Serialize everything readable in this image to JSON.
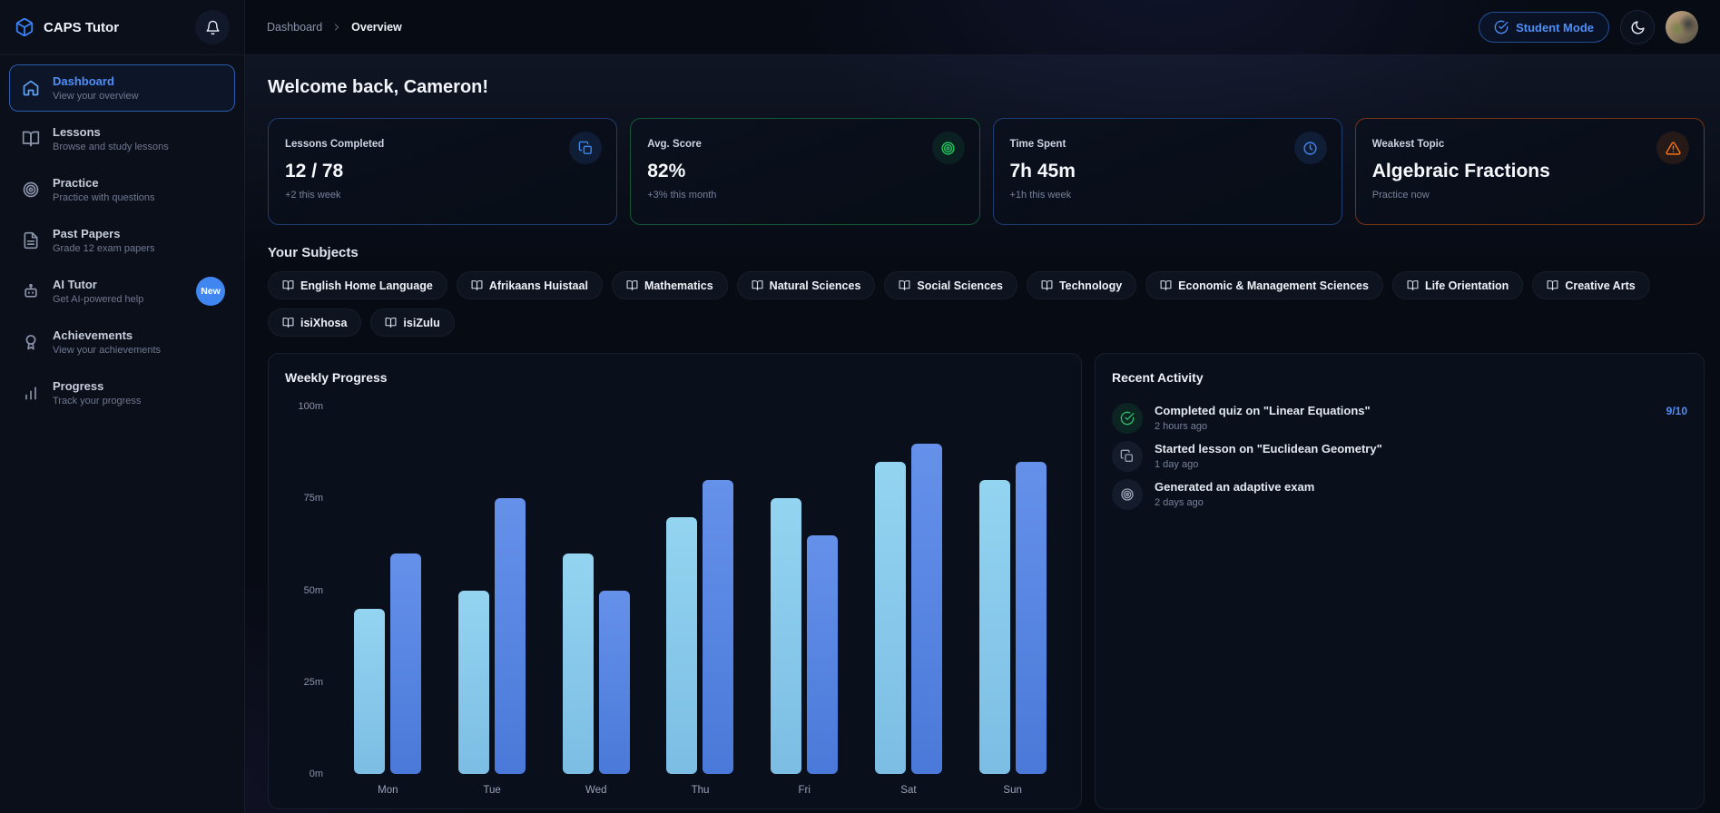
{
  "app": {
    "name": "CAPS Tutor"
  },
  "sidebar": {
    "items": [
      {
        "label": "Dashboard",
        "sub": "View your overview"
      },
      {
        "label": "Lessons",
        "sub": "Browse and study lessons"
      },
      {
        "label": "Practice",
        "sub": "Practice with questions"
      },
      {
        "label": "Past Papers",
        "sub": "Grade 12 exam papers"
      },
      {
        "label": "AI Tutor",
        "sub": "Get AI-powered help",
        "badge": "New"
      },
      {
        "label": "Achievements",
        "sub": "View your achievements"
      },
      {
        "label": "Progress",
        "sub": "Track your progress"
      }
    ]
  },
  "header": {
    "breadcrumb": {
      "parent": "Dashboard",
      "current": "Overview"
    },
    "student_mode_label": "Student Mode"
  },
  "main": {
    "welcome": "Welcome back, Cameron!",
    "subjects_title": "Your Subjects"
  },
  "stats": {
    "cards": [
      {
        "label": "Lessons Completed",
        "value": "12 / 78",
        "sub": "+2 this week",
        "icon": "copy-icon",
        "accent": "#3b82f6"
      },
      {
        "label": "Avg. Score",
        "value": "82%",
        "sub": "+3% this month",
        "icon": "target-icon",
        "accent": "#22c55e"
      },
      {
        "label": "Time Spent",
        "value": "7h 45m",
        "sub": "+1h this week",
        "icon": "clock-icon",
        "accent": "#3b82f6"
      },
      {
        "label": "Weakest Topic",
        "value": "Algebraic Fractions",
        "sub": "Practice now",
        "icon": "alert-triangle-icon",
        "accent": "#f97316"
      }
    ]
  },
  "subjects": {
    "items": [
      "English Home Language",
      "Afrikaans Huistaal",
      "Mathematics",
      "Natural Sciences",
      "Social Sciences",
      "Technology",
      "Economic & Management Sciences",
      "Life Orientation",
      "Creative Arts",
      "isiXhosa",
      "isiZulu"
    ]
  },
  "chart_data": {
    "type": "bar",
    "title": "Weekly Progress",
    "categories": [
      "Mon",
      "Tue",
      "Wed",
      "Thu",
      "Fri",
      "Sat",
      "Sun"
    ],
    "series": [
      {
        "name": "series-light-blue",
        "color": "#8ccbec",
        "values": [
          45,
          50,
          60,
          70,
          75,
          85,
          80
        ]
      },
      {
        "name": "series-blue",
        "color": "#5585e2",
        "values": [
          60,
          75,
          50,
          80,
          65,
          90,
          85
        ]
      }
    ],
    "unit": "minutes",
    "ylabel": "",
    "xlabel": "",
    "ylim": [
      0,
      100
    ],
    "yticks": [
      "0m",
      "25m",
      "50m",
      "75m",
      "100m"
    ],
    "grid": false,
    "legend": "none"
  },
  "activity": {
    "title": "Recent Activity",
    "items": [
      {
        "title": "Completed quiz on \"Linear Equations\"",
        "time": "2 hours ago",
        "score": "9/10",
        "icon": "check-circle-icon"
      },
      {
        "title": "Started lesson on \"Euclidean Geometry\"",
        "time": "1 day ago",
        "icon": "copy-icon"
      },
      {
        "title": "Generated an adaptive exam",
        "time": "2 days ago",
        "icon": "target-icon"
      }
    ]
  }
}
